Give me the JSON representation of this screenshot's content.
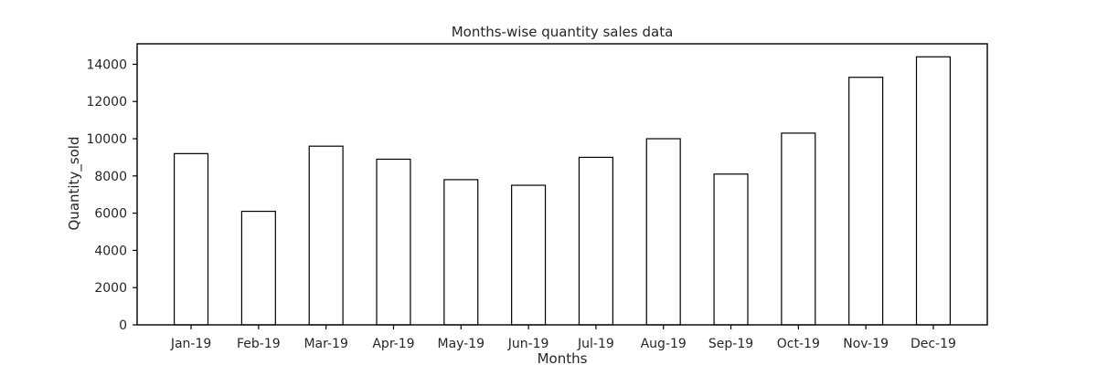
{
  "chart_data": {
    "type": "bar",
    "title": "Months-wise quantity sales data",
    "xlabel": "Months",
    "ylabel": "Quantity_sold",
    "categories": [
      "Jan-19",
      "Feb-19",
      "Mar-19",
      "Apr-19",
      "May-19",
      "Jun-19",
      "Jul-19",
      "Aug-19",
      "Sep-19",
      "Oct-19",
      "Nov-19",
      "Dec-19"
    ],
    "values": [
      9200,
      6100,
      9600,
      8900,
      7800,
      7500,
      9000,
      10000,
      8100,
      10300,
      13300,
      14400
    ],
    "ylim": [
      0,
      15100
    ],
    "yticks": [
      0,
      2000,
      4000,
      6000,
      8000,
      10000,
      12000,
      14000
    ],
    "grid": false,
    "bar_fill": "#ffffff",
    "bar_edge": "#000000"
  }
}
